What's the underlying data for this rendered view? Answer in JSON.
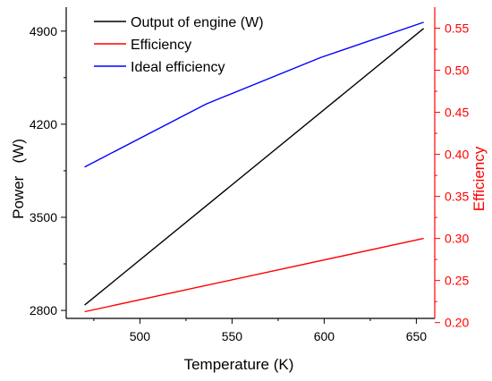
{
  "chart_data": {
    "type": "line",
    "title": "",
    "xlabel": "Temperature (K)",
    "ylabel": "Power   (W)",
    "y2label": "Efficiency",
    "xlim": [
      460,
      660
    ],
    "ylim": [
      2740,
      5080
    ],
    "y2lim": [
      0.205,
      0.575
    ],
    "xticks": [
      500,
      550,
      600,
      650
    ],
    "yticks": [
      2800,
      3500,
      4200,
      4900
    ],
    "y2ticks": [
      0.2,
      0.25,
      0.3,
      0.35,
      0.4,
      0.45,
      0.5,
      0.55
    ],
    "y2tick_labels": [
      "0.20",
      "0.25",
      "0.30",
      "0.35",
      "0.40",
      "0.45",
      "0.50",
      "0.55"
    ],
    "legend_position": "top-left",
    "grid": false,
    "series": [
      {
        "name": "Output of engine (W)",
        "axis": "left",
        "color": "#000000",
        "x": [
          470,
          654
        ],
        "y": [
          2840,
          4920
        ]
      },
      {
        "name": "Efficiency",
        "axis": "right",
        "color": "#ff0000",
        "x": [
          470,
          654
        ],
        "y": [
          0.213,
          0.3
        ]
      },
      {
        "name": "Ideal efficiency",
        "axis": "right",
        "color": "#0000ff",
        "x": [
          470,
          536,
          598,
          654
        ],
        "y": [
          0.385,
          0.46,
          0.515,
          0.557
        ]
      }
    ],
    "colors": {
      "axis_left": "#000000",
      "axis_right": "#ff0000"
    }
  }
}
